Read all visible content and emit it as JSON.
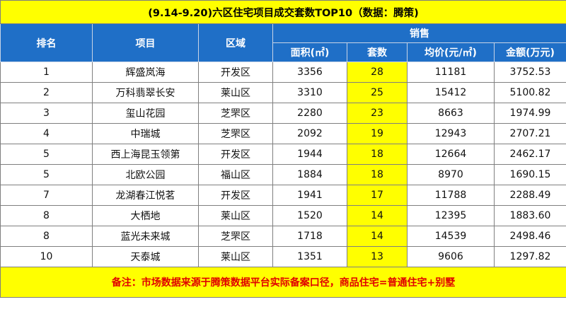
{
  "title": "(9.14-9.20)六区住宅项目成交套数TOP10（数据：腾策)",
  "headers": {
    "rank": "排名",
    "project": "项目",
    "district": "区域",
    "sales_group": "销售",
    "area": "面积(㎡)",
    "units": "套数",
    "avg_price": "均价(元/㎡)",
    "amount": "金额(万元)"
  },
  "rows": [
    {
      "rank": "1",
      "project": "辉盛岚海",
      "district": "开发区",
      "area": "3356",
      "units": "28",
      "avg_price": "11181",
      "amount": "3752.53"
    },
    {
      "rank": "2",
      "project": "万科翡翠长安",
      "district": "莱山区",
      "area": "3310",
      "units": "25",
      "avg_price": "15412",
      "amount": "5100.82"
    },
    {
      "rank": "3",
      "project": "玺山花园",
      "district": "芝罘区",
      "area": "2280",
      "units": "23",
      "avg_price": "8663",
      "amount": "1974.99"
    },
    {
      "rank": "4",
      "project": "中瑞城",
      "district": "芝罘区",
      "area": "2092",
      "units": "19",
      "avg_price": "12943",
      "amount": "2707.21"
    },
    {
      "rank": "5",
      "project": "西上海昆玉领第",
      "district": "开发区",
      "area": "1944",
      "units": "18",
      "avg_price": "12664",
      "amount": "2462.17"
    },
    {
      "rank": "5",
      "project": "北欧公园",
      "district": "福山区",
      "area": "1884",
      "units": "18",
      "avg_price": "8970",
      "amount": "1690.15"
    },
    {
      "rank": "7",
      "project": "龙湖春江悦茗",
      "district": "开发区",
      "area": "1941",
      "units": "17",
      "avg_price": "11788",
      "amount": "2288.49"
    },
    {
      "rank": "8",
      "project": "大栖地",
      "district": "莱山区",
      "area": "1520",
      "units": "14",
      "avg_price": "12395",
      "amount": "1883.60"
    },
    {
      "rank": "8",
      "project": "蓝光未来城",
      "district": "芝罘区",
      "area": "1718",
      "units": "14",
      "avg_price": "14539",
      "amount": "2498.46"
    },
    {
      "rank": "10",
      "project": "天泰城",
      "district": "莱山区",
      "area": "1351",
      "units": "13",
      "avg_price": "9606",
      "amount": "1297.82"
    }
  ],
  "footer_note": "备注：市场数据来源于腾策数据平台实际备案口径，商品住宅=普通住宅+别墅",
  "colors": {
    "header_bg": "#1f6fc7",
    "highlight": "#ffff00",
    "note_text": "#e00000"
  }
}
